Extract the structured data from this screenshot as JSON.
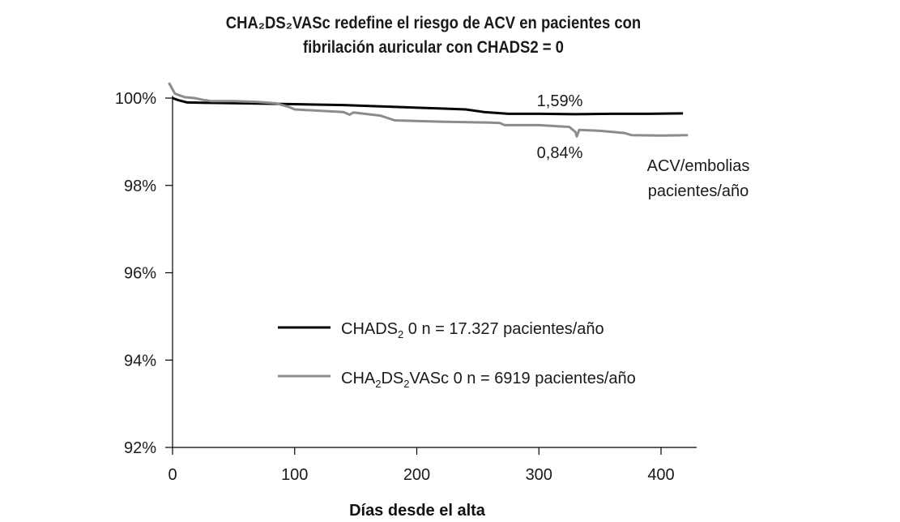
{
  "title_lines": [
    "CHA₂DS₂VASc redefine el riesgo de ACV en pacientes con",
    "fibrilación auricular con CHADS2 = 0"
  ],
  "chart_data": {
    "type": "line",
    "title": "CHA₂DS₂VASc redefine el riesgo de ACV en pacientes con fibrilación auricular con CHADS2 = 0",
    "xlabel": "Días desde el alta",
    "ylabel": "",
    "xlim": [
      0,
      430
    ],
    "ylim": [
      92,
      100.3
    ],
    "x_ticks": [
      0,
      100,
      200,
      300,
      400
    ],
    "x_tick_labels": [
      "0",
      "100",
      "200",
      "300",
      "400"
    ],
    "y_ticks": [
      100,
      98,
      96,
      94,
      92
    ],
    "y_tick_labels": [
      "100%",
      "98%",
      "96%",
      "94%",
      "92%"
    ],
    "series": [
      {
        "name": "CHADS₂ 0 n = 17.327 pacientes/año",
        "legend_main": "CHADS",
        "legend_sub": "2",
        "legend_rest": " 0 n = 17.327 pacientes/año",
        "color": "#000000",
        "end_label": "1,59%",
        "points": [
          [
            0,
            100.0
          ],
          [
            5,
            99.95
          ],
          [
            12,
            99.9
          ],
          [
            30,
            99.89
          ],
          [
            60,
            99.88
          ],
          [
            100,
            99.86
          ],
          [
            140,
            99.84
          ],
          [
            180,
            99.8
          ],
          [
            220,
            99.76
          ],
          [
            240,
            99.74
          ],
          [
            255,
            99.68
          ],
          [
            275,
            99.64
          ],
          [
            300,
            99.64
          ],
          [
            330,
            99.63
          ],
          [
            360,
            99.64
          ],
          [
            390,
            99.64
          ],
          [
            418,
            99.65
          ]
        ]
      },
      {
        "name": "CHA₂DS₂VASc 0 n = 6919 pacientes/año",
        "legend_main": "CHA",
        "legend_sub": "2",
        "legend_mid": "DS",
        "legend_sub2": "2",
        "legend_rest": "VASc 0 n = 6919 pacientes/año",
        "color": "#8c8c8c",
        "end_label": "0,84%",
        "points": [
          [
            -3,
            100.35
          ],
          [
            2,
            100.1
          ],
          [
            10,
            100.02
          ],
          [
            18,
            100.0
          ],
          [
            25,
            99.96
          ],
          [
            32,
            99.93
          ],
          [
            50,
            99.93
          ],
          [
            70,
            99.91
          ],
          [
            85,
            99.88
          ],
          [
            95,
            99.8
          ],
          [
            100,
            99.74
          ],
          [
            120,
            99.71
          ],
          [
            140,
            99.68
          ],
          [
            145,
            99.62
          ],
          [
            148,
            99.67
          ],
          [
            170,
            99.6
          ],
          [
            182,
            99.49
          ],
          [
            220,
            99.46
          ],
          [
            260,
            99.44
          ],
          [
            268,
            99.43
          ],
          [
            272,
            99.38
          ],
          [
            300,
            99.38
          ],
          [
            325,
            99.34
          ],
          [
            330,
            99.22
          ],
          [
            331,
            99.12
          ],
          [
            333,
            99.27
          ],
          [
            350,
            99.25
          ],
          [
            370,
            99.2
          ],
          [
            376,
            99.15
          ],
          [
            400,
            99.14
          ],
          [
            422,
            99.15
          ]
        ]
      }
    ],
    "annotation": [
      "ACV/embolias",
      "pacientes/año"
    ],
    "legend_position": "center",
    "grid": false
  }
}
